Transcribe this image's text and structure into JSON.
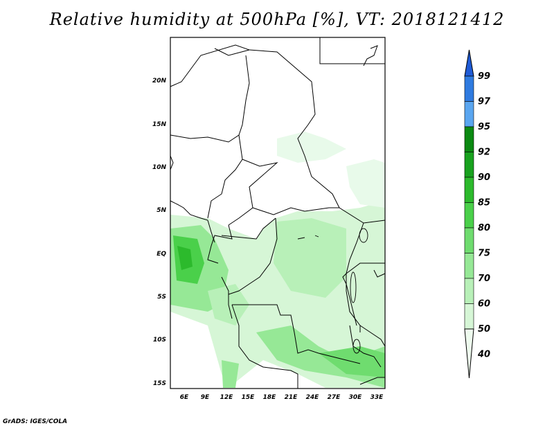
{
  "title": "Relative humidity at 500hPa [%], VT: 2018121412",
  "credit": "GrADS: IGES/COLA",
  "map": {
    "lon_ticks": [
      "6E",
      "9E",
      "12E",
      "15E",
      "18E",
      "21E",
      "24E",
      "27E",
      "30E",
      "33E"
    ],
    "lat_ticks": [
      "20N",
      "15N",
      "10N",
      "5N",
      "EQ",
      "5S",
      "10S",
      "15S"
    ],
    "colorbar": {
      "labels": [
        "99",
        "97",
        "95",
        "92",
        "90",
        "85",
        "80",
        "75",
        "70",
        "60",
        "50",
        "40"
      ],
      "colors": [
        "#1f5bd6",
        "#2f7be0",
        "#5aa6f0",
        "#0b8a12",
        "#18a21e",
        "#2cba2c",
        "#4ad04a",
        "#6fdc6f",
        "#96e896",
        "#b8f0b8",
        "#d6f6d6",
        "#eefbee"
      ]
    }
  }
}
